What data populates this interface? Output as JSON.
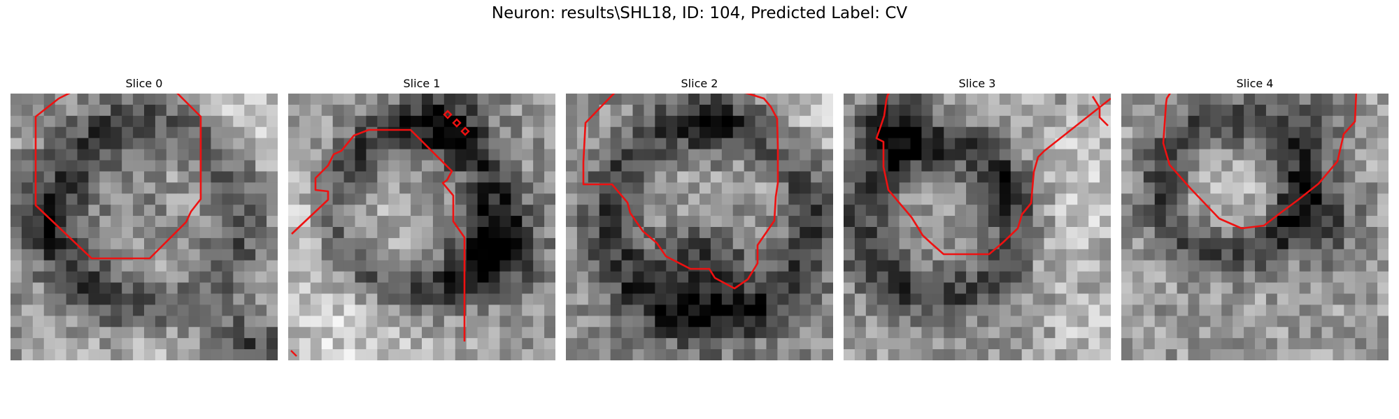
{
  "figure": {
    "title": "Neuron: results\\SHL18, ID: 104, Predicted Label: CV",
    "contour_color": "#ee1111",
    "cmap": "gray"
  },
  "slices": [
    {
      "label": "Slice 0"
    },
    {
      "label": "Slice 1"
    },
    {
      "label": "Slice 2"
    },
    {
      "label": "Slice 3"
    },
    {
      "label": "Slice 4"
    }
  ]
}
